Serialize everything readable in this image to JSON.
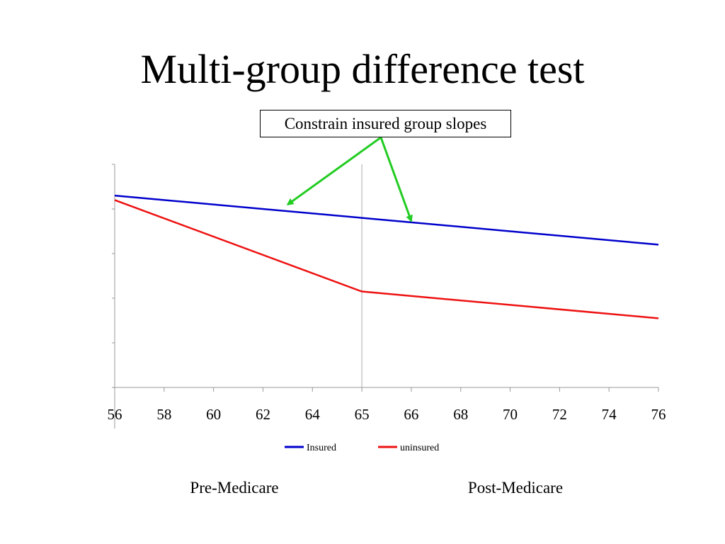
{
  "slide": {
    "title": "Multi-group difference test",
    "callout": "Constrain insured group slopes",
    "period_labels": [
      "Pre-Medicare",
      "Post-Medicare"
    ]
  },
  "chart_data": {
    "type": "line",
    "categories": [
      "56",
      "58",
      "60",
      "62",
      "64",
      "65",
      "66",
      "68",
      "70",
      "72",
      "74",
      "76"
    ],
    "break_category": "65",
    "ylim": [
      0,
      5
    ],
    "y_ticks_labeled": false,
    "grid": false,
    "legend_position": "bottom",
    "series": [
      {
        "name": "Insured",
        "color": "#0000cc",
        "points": [
          [
            "56",
            4.3
          ],
          [
            "65",
            3.8
          ],
          [
            "76",
            3.2
          ]
        ]
      },
      {
        "name": "uninsured",
        "color": "#ee1111",
        "points": [
          [
            "56",
            4.2
          ],
          [
            "65",
            2.15
          ],
          [
            "76",
            1.55
          ]
        ]
      }
    ],
    "annotation_arrow_color": "#22cc22",
    "annotation_targets": [
      [
        "63",
        4.1
      ],
      [
        "66",
        3.73
      ]
    ]
  }
}
